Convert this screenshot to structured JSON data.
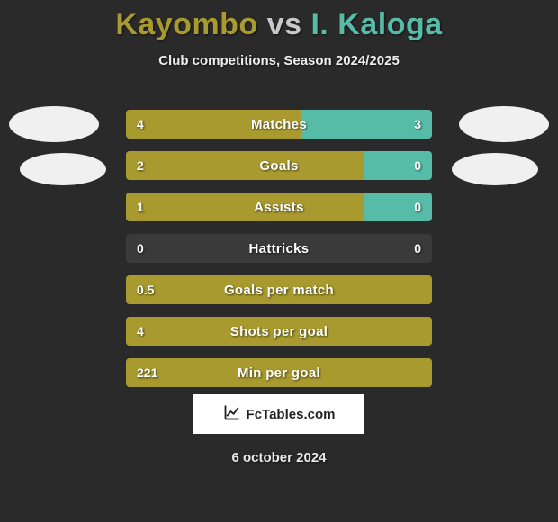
{
  "title": {
    "player1": "Kayombo",
    "vs": "vs",
    "player2": "I. Kaloga"
  },
  "subtitle": "Club competitions, Season 2024/2025",
  "colors": {
    "player1": "#a89a2e",
    "player2": "#56bca8",
    "bar_bg": "#3a3a3a",
    "page_bg": "#2a2a2a",
    "text": "#ffffff"
  },
  "rows": [
    {
      "label": "Matches",
      "left_value": "4",
      "right_value": "3",
      "left_pct": 57,
      "right_pct": 43
    },
    {
      "label": "Goals",
      "left_value": "2",
      "right_value": "0",
      "left_pct": 78,
      "right_pct": 22
    },
    {
      "label": "Assists",
      "left_value": "1",
      "right_value": "0",
      "left_pct": 78,
      "right_pct": 22
    },
    {
      "label": "Hattricks",
      "left_value": "0",
      "right_value": "0",
      "left_pct": 0,
      "right_pct": 0
    },
    {
      "label": "Goals per match",
      "left_value": "0.5",
      "right_value": "",
      "left_pct": 100,
      "right_pct": 0
    },
    {
      "label": "Shots per goal",
      "left_value": "4",
      "right_value": "",
      "left_pct": 100,
      "right_pct": 0
    },
    {
      "label": "Min per goal",
      "left_value": "221",
      "right_value": "",
      "left_pct": 100,
      "right_pct": 0
    }
  ],
  "branding": "FcTables.com",
  "date": "6 october 2024"
}
